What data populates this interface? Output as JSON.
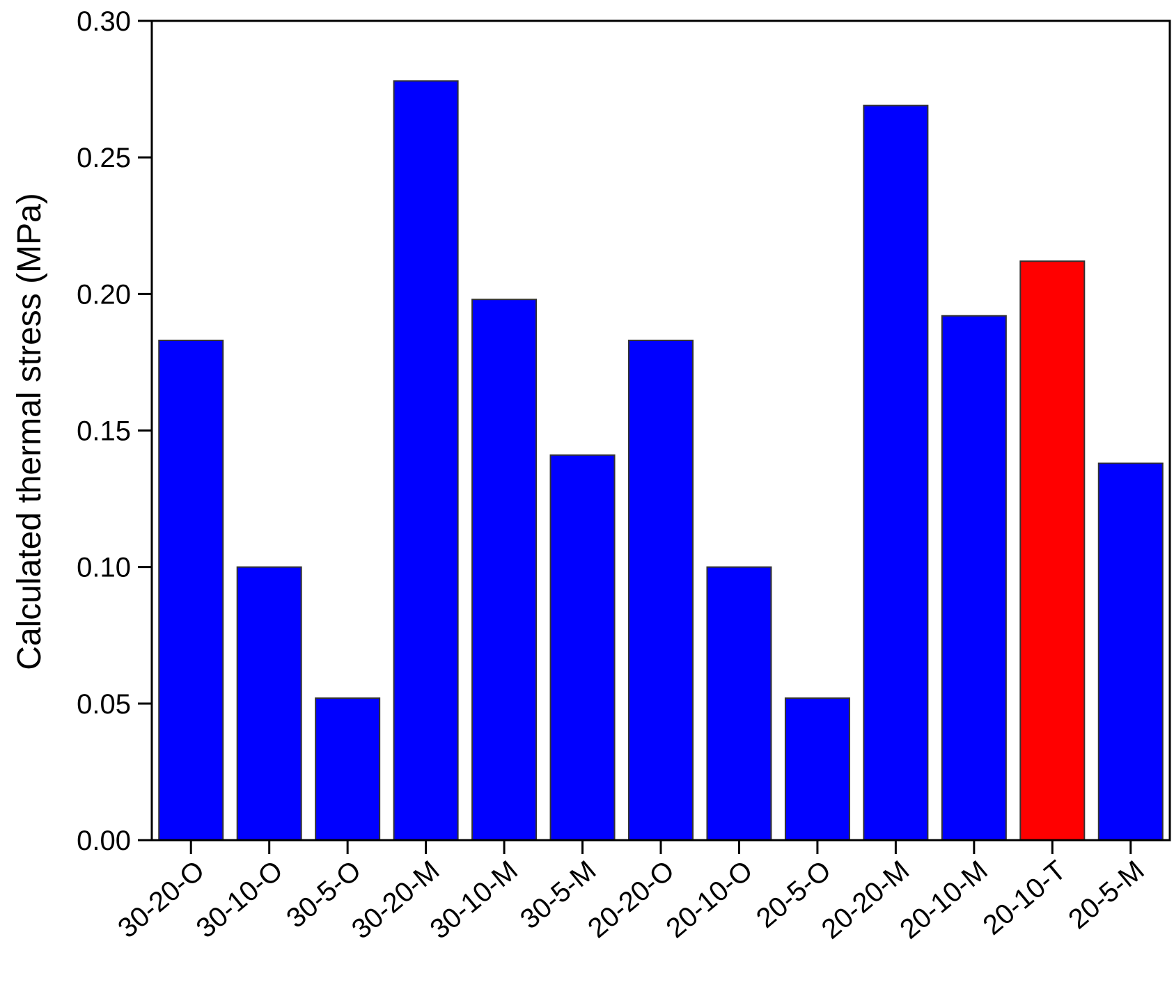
{
  "chart_data": {
    "type": "bar",
    "title": "",
    "xlabel": "",
    "ylabel": "Calculated thermal stress (MPa)",
    "ylim": [
      0,
      0.3
    ],
    "yticks": [
      "0.00",
      "0.05",
      "0.10",
      "0.15",
      "0.20",
      "0.25",
      "0.30"
    ],
    "yticks_values": [
      0,
      0.05,
      0.1,
      0.15,
      0.2,
      0.25,
      0.3
    ],
    "grid": false,
    "legend": "none",
    "categories": [
      "30-20-O",
      "30-10-O",
      "30-5-O",
      "30-20-M",
      "30-10-M",
      "30-5-M",
      "20-20-O",
      "20-10-O",
      "20-5-O",
      "20-20-M",
      "20-10-M",
      "20-10-T",
      "20-5-M"
    ],
    "values": [
      0.183,
      0.1,
      0.052,
      0.278,
      0.198,
      0.141,
      0.183,
      0.1,
      0.052,
      0.269,
      0.192,
      0.212,
      0.138
    ],
    "colors": [
      "#0000ff",
      "#0000ff",
      "#0000ff",
      "#0000ff",
      "#0000ff",
      "#0000ff",
      "#0000ff",
      "#0000ff",
      "#0000ff",
      "#0000ff",
      "#0000ff",
      "#ff0000",
      "#0000ff"
    ]
  }
}
